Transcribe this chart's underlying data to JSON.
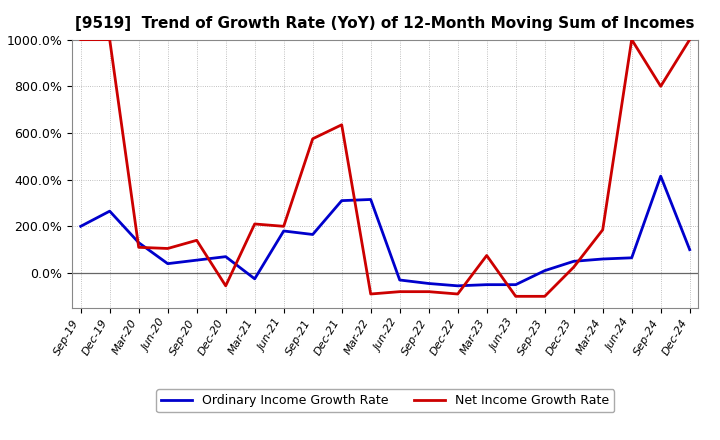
{
  "title": "[9519]  Trend of Growth Rate (YoY) of 12-Month Moving Sum of Incomes",
  "x_labels": [
    "Sep-19",
    "Dec-19",
    "Mar-20",
    "Jun-20",
    "Sep-20",
    "Dec-20",
    "Mar-21",
    "Jun-21",
    "Sep-21",
    "Dec-21",
    "Mar-22",
    "Jun-22",
    "Sep-22",
    "Dec-22",
    "Mar-23",
    "Jun-23",
    "Sep-23",
    "Dec-23",
    "Mar-24",
    "Jun-24",
    "Sep-24",
    "Dec-24"
  ],
  "ordinary_income": [
    200,
    265,
    130,
    40,
    55,
    70,
    -25,
    180,
    165,
    310,
    315,
    -30,
    -45,
    -55,
    -50,
    -50,
    10,
    50,
    60,
    65,
    415,
    100
  ],
  "net_income": [
    1000,
    1000,
    110,
    105,
    140,
    -55,
    210,
    200,
    575,
    635,
    -90,
    -80,
    -80,
    -90,
    75,
    -100,
    -100,
    25,
    185,
    1000,
    800,
    1000
  ],
  "ordinary_color": "#0000cc",
  "net_color": "#cc0000",
  "ylim": [
    -150,
    1000
  ],
  "yticks": [
    0,
    200,
    400,
    600,
    800,
    1000
  ],
  "ytick_labels": [
    "0.0%",
    "200.0%",
    "400.0%",
    "600.0%",
    "800.0%",
    "1000.0%"
  ],
  "legend_ordinary": "Ordinary Income Growth Rate",
  "legend_net": "Net Income Growth Rate",
  "bg_color": "#ffffff",
  "grid_color": "#999999"
}
